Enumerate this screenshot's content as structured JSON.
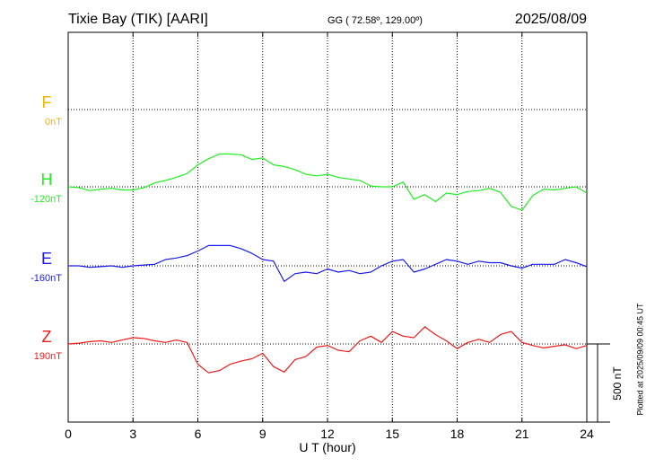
{
  "header": {
    "station": "Tixie Bay (TIK)  [AARI]",
    "coords": "GG ( 72.58º, 129.00º)",
    "date": "2025/08/09"
  },
  "side_note": "Plotted at 2025/09/09 00:45 UT",
  "chart_data": {
    "type": "line",
    "title": "Tixie Bay (TIK)  [AARI]",
    "xlabel": "U T (hour)",
    "ylabel": "",
    "xlim": [
      0,
      24
    ],
    "xticks": [
      0,
      3,
      6,
      9,
      12,
      15,
      18,
      21,
      24
    ],
    "grid": true,
    "scale_bar": {
      "label": "500 nT",
      "value": 500
    },
    "series": [
      {
        "name": "F",
        "baseline_label": "0nT",
        "color": "#f5b400",
        "baseline": 0,
        "x": [],
        "values": []
      },
      {
        "name": "H",
        "baseline_label": "-120nT",
        "color": "#22ee22",
        "baseline": -120,
        "x": [
          0,
          0.5,
          1,
          1.5,
          2,
          2.5,
          3,
          3.5,
          4,
          4.5,
          5,
          5.5,
          6,
          6.5,
          7,
          7.5,
          8,
          8.5,
          9,
          9.5,
          10,
          10.5,
          11,
          11.5,
          12,
          12.5,
          13,
          13.5,
          14,
          14.5,
          15,
          15.5,
          16,
          16.5,
          17,
          17.5,
          18,
          18.5,
          19,
          19.5,
          20,
          20.5,
          21,
          21.5,
          22,
          22.5,
          23,
          23.5,
          24
        ],
        "values": [
          -120,
          -125,
          -145,
          -135,
          -130,
          -140,
          -140,
          -125,
          -95,
          -80,
          -60,
          -35,
          20,
          60,
          90,
          90,
          85,
          55,
          65,
          20,
          10,
          -10,
          -40,
          -50,
          -40,
          -60,
          -70,
          -80,
          -115,
          -120,
          -120,
          -90,
          -200,
          -170,
          -215,
          -160,
          -170,
          -150,
          -145,
          -130,
          -155,
          -245,
          -270,
          -175,
          -135,
          -140,
          -130,
          -120,
          -160
        ]
      },
      {
        "name": "E",
        "baseline_label": "-160nT",
        "color": "#1a1aee",
        "baseline": -160,
        "x": [
          0,
          0.5,
          1,
          1.5,
          2,
          2.5,
          3,
          3.5,
          4,
          4.5,
          5,
          5.5,
          6,
          6.5,
          7,
          7.5,
          8,
          8.5,
          9,
          9.5,
          10,
          10.5,
          11,
          11.5,
          12,
          12.5,
          13,
          13.5,
          14,
          14.5,
          15,
          15.5,
          16,
          16.5,
          17,
          17.5,
          18,
          18.5,
          19,
          19.5,
          20,
          20.5,
          21,
          21.5,
          22,
          22.5,
          23,
          23.5,
          24
        ],
        "values": [
          -160,
          -160,
          -170,
          -165,
          -160,
          -170,
          -160,
          -155,
          -150,
          -120,
          -110,
          -95,
          -65,
          -30,
          -30,
          -30,
          -50,
          -80,
          -120,
          -130,
          -260,
          -210,
          -200,
          -210,
          -180,
          -200,
          -190,
          -210,
          -200,
          -160,
          -130,
          -120,
          -200,
          -180,
          -150,
          -120,
          -130,
          -150,
          -130,
          -140,
          -140,
          -160,
          -175,
          -150,
          -150,
          -150,
          -120,
          -140,
          -165
        ]
      },
      {
        "name": "Z",
        "baseline_label": "190nT",
        "color": "#ee1a1a",
        "baseline": 190,
        "x": [
          0,
          0.5,
          1,
          1.5,
          2,
          2.5,
          3,
          3.5,
          4,
          4.5,
          5,
          5.5,
          6,
          6.5,
          7,
          7.5,
          8,
          8.5,
          9,
          9.5,
          10,
          10.5,
          11,
          11.5,
          12,
          12.5,
          13,
          13.5,
          14,
          14.5,
          15,
          15.5,
          16,
          16.5,
          17,
          17.5,
          18,
          18.5,
          19,
          19.5,
          20,
          20.5,
          21,
          21.5,
          22,
          22.5,
          23,
          23.5,
          24
        ],
        "values": [
          190,
          195,
          205,
          210,
          200,
          215,
          230,
          225,
          210,
          200,
          215,
          200,
          60,
          5,
          20,
          60,
          80,
          95,
          130,
          45,
          10,
          90,
          110,
          170,
          180,
          150,
          140,
          210,
          240,
          200,
          270,
          240,
          230,
          300,
          250,
          210,
          160,
          200,
          220,
          200,
          250,
          270,
          200,
          180,
          165,
          175,
          185,
          160,
          180
        ]
      }
    ]
  }
}
